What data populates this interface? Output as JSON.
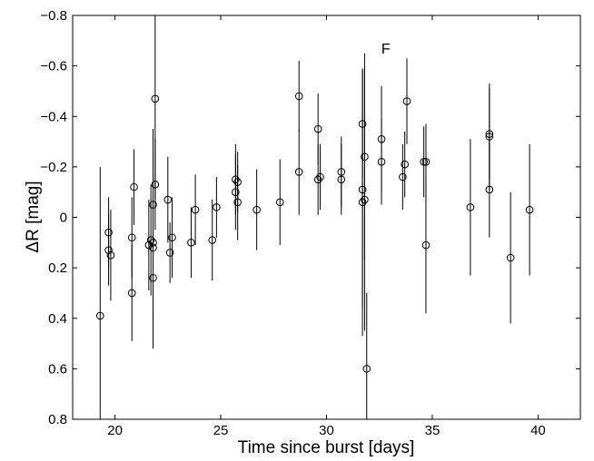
{
  "chart_data": {
    "type": "scatter",
    "xlabel": "Time since burst [days]",
    "ylabel": "ΔR [mag]",
    "xlim": [
      18,
      42
    ],
    "ylim": [
      -0.8,
      0.8
    ],
    "y_inverted": true,
    "grid": false,
    "xticks": [
      20,
      25,
      30,
      35,
      40
    ],
    "yticks": [
      -0.8,
      -0.6,
      -0.4,
      -0.2,
      0,
      0.2,
      0.4,
      0.6,
      0.8
    ],
    "xtick_labels": [
      "20",
      "25",
      "30",
      "35",
      "40"
    ],
    "ytick_labels": [
      "−0.8",
      "−0.6",
      "−0.4",
      "−0.2",
      "0",
      "0.2",
      "0.4",
      "0.6",
      "0.8"
    ],
    "marker": "open-circle",
    "color": "#000000",
    "annotations": [
      {
        "text": "F",
        "x": 32.8,
        "y": -0.67
      }
    ],
    "points": [
      {
        "x": 19.3,
        "y": 0.39,
        "err": 0.59
      },
      {
        "x": 19.7,
        "y": 0.06,
        "err": 0.14
      },
      {
        "x": 19.7,
        "y": 0.13,
        "err": 0.14
      },
      {
        "x": 19.8,
        "y": 0.15,
        "err": 0.18
      },
      {
        "x": 20.8,
        "y": 0.08,
        "err": 0.16
      },
      {
        "x": 20.8,
        "y": 0.3,
        "err": 0.19
      },
      {
        "x": 20.9,
        "y": -0.12,
        "err": 0.15
      },
      {
        "x": 21.6,
        "y": 0.11,
        "err": 0.18
      },
      {
        "x": 21.7,
        "y": 0.09,
        "err": 0.22
      },
      {
        "x": 21.8,
        "y": 0.1,
        "err": 0.3
      },
      {
        "x": 21.8,
        "y": -0.05,
        "err": 0.3
      },
      {
        "x": 21.8,
        "y": 0.12,
        "err": 0.25
      },
      {
        "x": 21.8,
        "y": 0.24,
        "err": 0.28
      },
      {
        "x": 21.9,
        "y": -0.47,
        "err": 0.4
      },
      {
        "x": 21.9,
        "y": -0.13,
        "err": 0.18
      },
      {
        "x": 22.5,
        "y": -0.07,
        "err": 0.17
      },
      {
        "x": 22.6,
        "y": 0.14,
        "err": 0.12
      },
      {
        "x": 22.7,
        "y": 0.08,
        "err": 0.16
      },
      {
        "x": 23.6,
        "y": 0.1,
        "err": 0.14
      },
      {
        "x": 23.8,
        "y": -0.03,
        "err": 0.14
      },
      {
        "x": 24.6,
        "y": 0.09,
        "err": 0.16
      },
      {
        "x": 24.8,
        "y": -0.04,
        "err": 0.12
      },
      {
        "x": 25.7,
        "y": -0.1,
        "err": 0.15
      },
      {
        "x": 25.7,
        "y": -0.15,
        "err": 0.14
      },
      {
        "x": 25.8,
        "y": -0.06,
        "err": 0.15
      },
      {
        "x": 25.8,
        "y": -0.14,
        "err": 0.12
      },
      {
        "x": 26.7,
        "y": -0.03,
        "err": 0.16
      },
      {
        "x": 27.8,
        "y": -0.06,
        "err": 0.17
      },
      {
        "x": 28.7,
        "y": -0.48,
        "err": 0.14
      },
      {
        "x": 28.7,
        "y": -0.18,
        "err": 0.17
      },
      {
        "x": 29.6,
        "y": -0.35,
        "err": 0.14
      },
      {
        "x": 29.6,
        "y": -0.15,
        "err": 0.14
      },
      {
        "x": 29.7,
        "y": -0.16,
        "err": 0.13
      },
      {
        "x": 30.7,
        "y": -0.18,
        "err": 0.14
      },
      {
        "x": 30.7,
        "y": -0.15,
        "err": 0.14
      },
      {
        "x": 31.7,
        "y": -0.37,
        "err": 0.21
      },
      {
        "x": 31.7,
        "y": -0.11,
        "err": 0.47
      },
      {
        "x": 31.7,
        "y": -0.06,
        "err": 0.53
      },
      {
        "x": 31.8,
        "y": -0.24,
        "err": 0.41
      },
      {
        "x": 31.8,
        "y": -0.07,
        "err": 0.52
      },
      {
        "x": 31.9,
        "y": 0.6,
        "err": 0.3
      },
      {
        "x": 32.6,
        "y": -0.31,
        "err": 0.21
      },
      {
        "x": 32.6,
        "y": -0.22,
        "err": 0.17
      },
      {
        "x": 33.6,
        "y": -0.16,
        "err": 0.13
      },
      {
        "x": 33.7,
        "y": -0.21,
        "err": 0.13
      },
      {
        "x": 33.8,
        "y": -0.46,
        "err": 0.17
      },
      {
        "x": 34.6,
        "y": -0.22,
        "err": 0.14
      },
      {
        "x": 34.7,
        "y": -0.22,
        "err": 0.15
      },
      {
        "x": 34.7,
        "y": 0.11,
        "err": 0.27
      },
      {
        "x": 36.8,
        "y": -0.04,
        "err": 0.27
      },
      {
        "x": 37.7,
        "y": -0.33,
        "err": 0.18
      },
      {
        "x": 37.7,
        "y": -0.32,
        "err": 0.21
      },
      {
        "x": 37.7,
        "y": -0.11,
        "err": 0.19
      },
      {
        "x": 38.7,
        "y": 0.16,
        "err": 0.26
      },
      {
        "x": 39.6,
        "y": -0.03,
        "err": 0.26
      }
    ]
  }
}
